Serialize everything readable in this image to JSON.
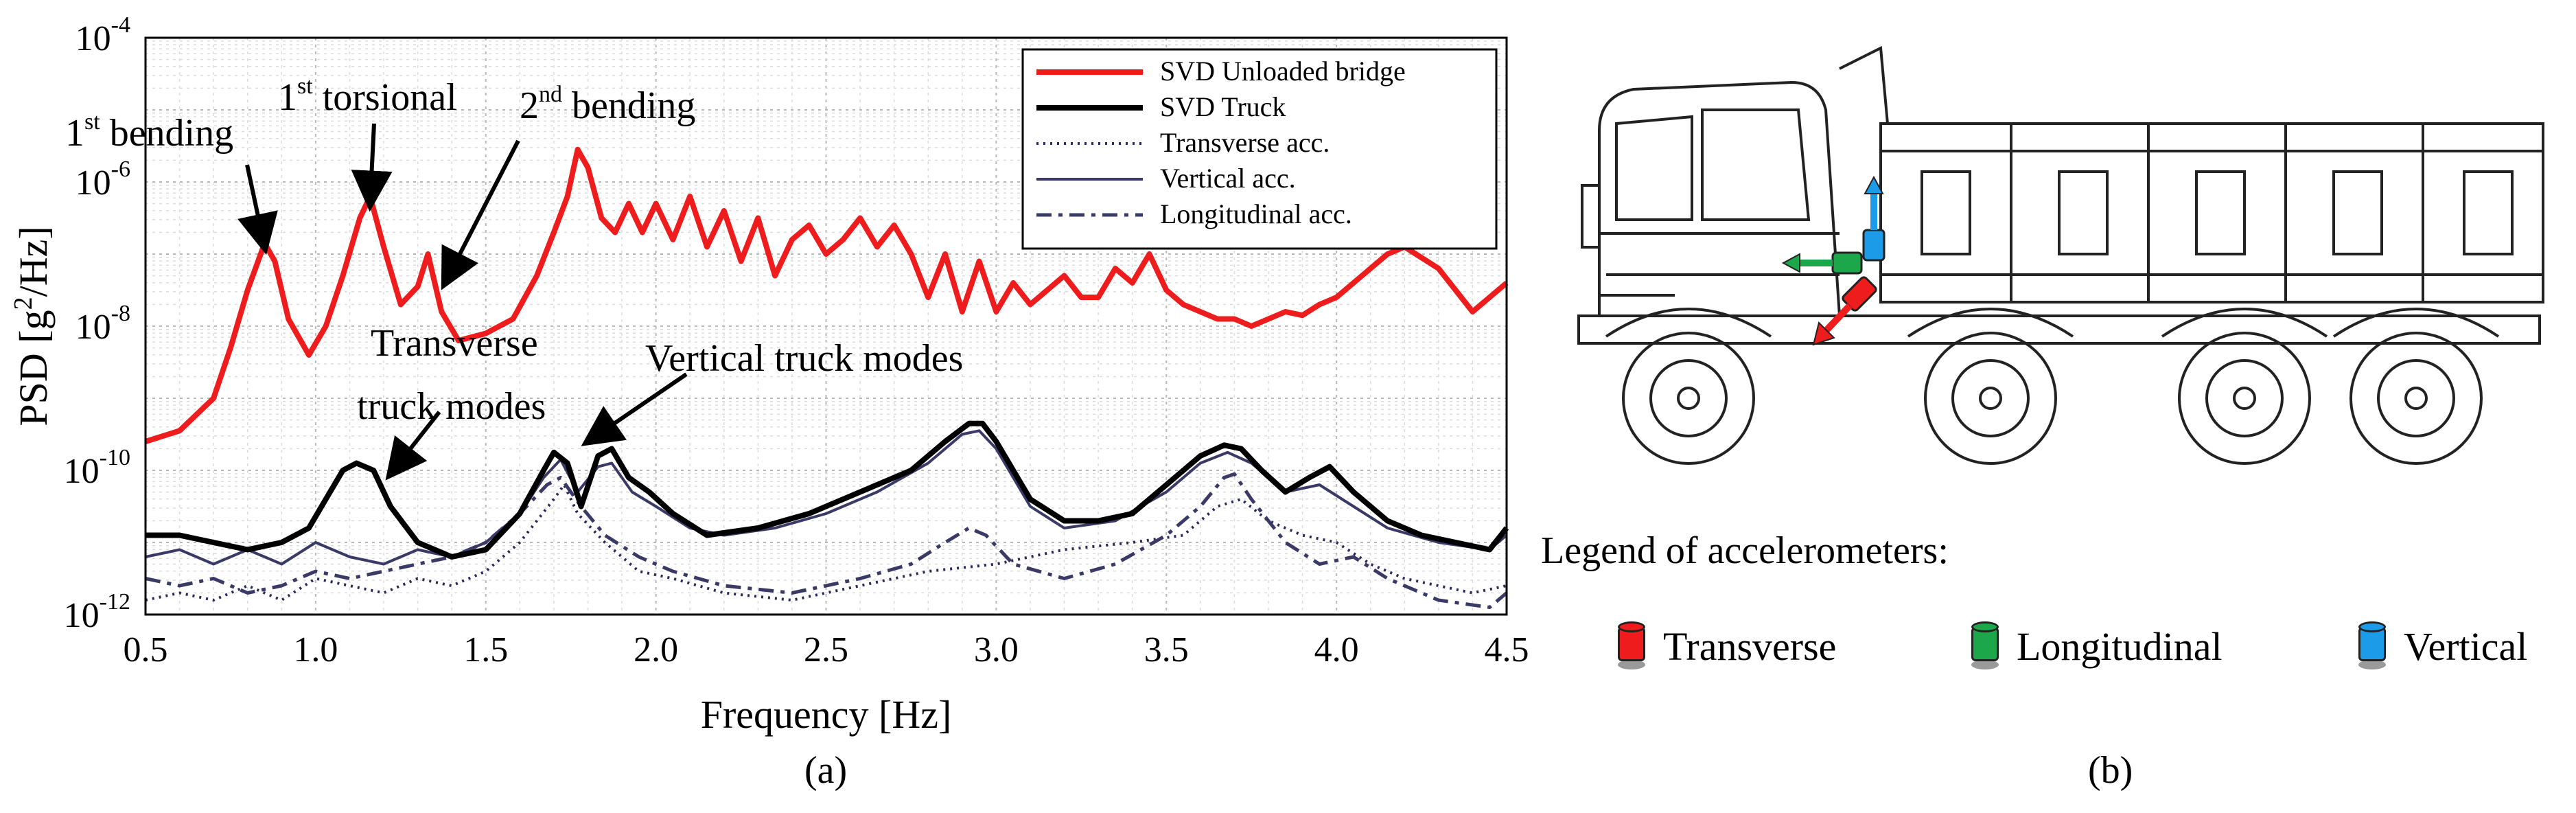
{
  "chart_data": {
    "type": "line",
    "yscale": "log",
    "xlabel": "Frequency [Hz]",
    "ylabel_parts": [
      "PSD [g",
      "2",
      "/Hz]"
    ],
    "xlim": [
      0.5,
      4.5
    ],
    "ylim_exponents": [
      -12,
      -4
    ],
    "xticks": [
      "0.5",
      "1.0",
      "1.5",
      "2.0",
      "2.5",
      "3.0",
      "3.5",
      "4.0",
      "4.5"
    ],
    "yticks": [
      {
        "base": "10",
        "exp": "-12"
      },
      {
        "base": "10",
        "exp": "-10"
      },
      {
        "base": "10",
        "exp": "-8"
      },
      {
        "base": "10",
        "exp": "-6"
      },
      {
        "base": "10",
        "exp": "-4"
      }
    ],
    "series": [
      {
        "name": "SVD Unloaded bridge",
        "color": "#ee1c1c",
        "style": "solid-thick",
        "points": [
          [
            0.5,
            -9.6
          ],
          [
            0.6,
            -9.45
          ],
          [
            0.7,
            -9.0
          ],
          [
            0.75,
            -8.3
          ],
          [
            0.8,
            -7.5
          ],
          [
            0.85,
            -6.85
          ],
          [
            0.88,
            -7.1
          ],
          [
            0.92,
            -7.9
          ],
          [
            0.98,
            -8.4
          ],
          [
            1.03,
            -8.0
          ],
          [
            1.08,
            -7.3
          ],
          [
            1.13,
            -6.5
          ],
          [
            1.16,
            -6.2
          ],
          [
            1.2,
            -6.9
          ],
          [
            1.25,
            -7.7
          ],
          [
            1.3,
            -7.45
          ],
          [
            1.33,
            -7.0
          ],
          [
            1.37,
            -7.8
          ],
          [
            1.42,
            -8.2
          ],
          [
            1.5,
            -8.1
          ],
          [
            1.58,
            -7.9
          ],
          [
            1.65,
            -7.3
          ],
          [
            1.7,
            -6.7
          ],
          [
            1.74,
            -6.2
          ],
          [
            1.77,
            -5.55
          ],
          [
            1.8,
            -5.8
          ],
          [
            1.84,
            -6.5
          ],
          [
            1.88,
            -6.7
          ],
          [
            1.92,
            -6.3
          ],
          [
            1.96,
            -6.7
          ],
          [
            2.0,
            -6.3
          ],
          [
            2.05,
            -6.8
          ],
          [
            2.1,
            -6.2
          ],
          [
            2.15,
            -6.9
          ],
          [
            2.2,
            -6.4
          ],
          [
            2.25,
            -7.1
          ],
          [
            2.3,
            -6.5
          ],
          [
            2.35,
            -7.3
          ],
          [
            2.4,
            -6.8
          ],
          [
            2.45,
            -6.6
          ],
          [
            2.5,
            -7.0
          ],
          [
            2.55,
            -6.8
          ],
          [
            2.6,
            -6.5
          ],
          [
            2.65,
            -6.9
          ],
          [
            2.7,
            -6.6
          ],
          [
            2.75,
            -7.0
          ],
          [
            2.8,
            -7.6
          ],
          [
            2.85,
            -7.0
          ],
          [
            2.9,
            -7.8
          ],
          [
            2.95,
            -7.1
          ],
          [
            3.0,
            -7.8
          ],
          [
            3.05,
            -7.4
          ],
          [
            3.1,
            -7.7
          ],
          [
            3.15,
            -7.5
          ],
          [
            3.2,
            -7.3
          ],
          [
            3.25,
            -7.6
          ],
          [
            3.3,
            -7.6
          ],
          [
            3.35,
            -7.2
          ],
          [
            3.4,
            -7.4
          ],
          [
            3.45,
            -7.0
          ],
          [
            3.5,
            -7.5
          ],
          [
            3.55,
            -7.7
          ],
          [
            3.6,
            -7.8
          ],
          [
            3.65,
            -7.9
          ],
          [
            3.7,
            -7.9
          ],
          [
            3.75,
            -8.0
          ],
          [
            3.8,
            -7.9
          ],
          [
            3.85,
            -7.8
          ],
          [
            3.9,
            -7.85
          ],
          [
            3.95,
            -7.7
          ],
          [
            4.0,
            -7.6
          ],
          [
            4.05,
            -7.4
          ],
          [
            4.1,
            -7.2
          ],
          [
            4.15,
            -7.0
          ],
          [
            4.2,
            -6.9
          ],
          [
            4.3,
            -7.2
          ],
          [
            4.35,
            -7.5
          ],
          [
            4.4,
            -7.8
          ],
          [
            4.45,
            -7.6
          ],
          [
            4.5,
            -7.4
          ]
        ]
      },
      {
        "name": "SVD Truck",
        "color": "#000000",
        "style": "solid-thick",
        "points": [
          [
            0.5,
            -10.9
          ],
          [
            0.6,
            -10.9
          ],
          [
            0.7,
            -11.0
          ],
          [
            0.8,
            -11.1
          ],
          [
            0.9,
            -11.0
          ],
          [
            0.98,
            -10.8
          ],
          [
            1.03,
            -10.4
          ],
          [
            1.08,
            -10.0
          ],
          [
            1.12,
            -9.9
          ],
          [
            1.17,
            -10.0
          ],
          [
            1.22,
            -10.5
          ],
          [
            1.3,
            -11.0
          ],
          [
            1.4,
            -11.2
          ],
          [
            1.5,
            -11.1
          ],
          [
            1.6,
            -10.6
          ],
          [
            1.67,
            -10.0
          ],
          [
            1.7,
            -9.75
          ],
          [
            1.74,
            -9.9
          ],
          [
            1.78,
            -10.5
          ],
          [
            1.83,
            -9.8
          ],
          [
            1.87,
            -9.7
          ],
          [
            1.92,
            -10.1
          ],
          [
            1.98,
            -10.3
          ],
          [
            2.05,
            -10.6
          ],
          [
            2.15,
            -10.9
          ],
          [
            2.3,
            -10.8
          ],
          [
            2.45,
            -10.6
          ],
          [
            2.6,
            -10.3
          ],
          [
            2.75,
            -10.0
          ],
          [
            2.85,
            -9.6
          ],
          [
            2.92,
            -9.35
          ],
          [
            2.96,
            -9.35
          ],
          [
            3.0,
            -9.6
          ],
          [
            3.1,
            -10.4
          ],
          [
            3.2,
            -10.7
          ],
          [
            3.3,
            -10.7
          ],
          [
            3.4,
            -10.6
          ],
          [
            3.5,
            -10.2
          ],
          [
            3.6,
            -9.8
          ],
          [
            3.67,
            -9.65
          ],
          [
            3.72,
            -9.7
          ],
          [
            3.78,
            -10.0
          ],
          [
            3.85,
            -10.3
          ],
          [
            3.92,
            -10.1
          ],
          [
            3.98,
            -9.95
          ],
          [
            4.05,
            -10.3
          ],
          [
            4.15,
            -10.7
          ],
          [
            4.25,
            -10.9
          ],
          [
            4.35,
            -11.0
          ],
          [
            4.45,
            -11.1
          ],
          [
            4.5,
            -10.8
          ]
        ]
      },
      {
        "name": "Transverse acc.",
        "color": "#2a2a5a",
        "style": "dotted",
        "points": [
          [
            0.5,
            -11.8
          ],
          [
            0.6,
            -11.7
          ],
          [
            0.7,
            -11.8
          ],
          [
            0.8,
            -11.6
          ],
          [
            0.9,
            -11.8
          ],
          [
            1.0,
            -11.5
          ],
          [
            1.1,
            -11.6
          ],
          [
            1.2,
            -11.7
          ],
          [
            1.3,
            -11.5
          ],
          [
            1.4,
            -11.6
          ],
          [
            1.5,
            -11.4
          ],
          [
            1.6,
            -11.0
          ],
          [
            1.7,
            -10.4
          ],
          [
            1.73,
            -10.2
          ],
          [
            1.77,
            -10.6
          ],
          [
            1.85,
            -11.0
          ],
          [
            1.95,
            -11.4
          ],
          [
            2.05,
            -11.5
          ],
          [
            2.2,
            -11.7
          ],
          [
            2.4,
            -11.8
          ],
          [
            2.6,
            -11.6
          ],
          [
            2.8,
            -11.4
          ],
          [
            3.0,
            -11.3
          ],
          [
            3.2,
            -11.1
          ],
          [
            3.4,
            -11.0
          ],
          [
            3.55,
            -10.9
          ],
          [
            3.65,
            -10.5
          ],
          [
            3.72,
            -10.4
          ],
          [
            3.8,
            -10.7
          ],
          [
            3.9,
            -10.9
          ],
          [
            4.0,
            -11.0
          ],
          [
            4.1,
            -11.3
          ],
          [
            4.2,
            -11.5
          ],
          [
            4.3,
            -11.6
          ],
          [
            4.4,
            -11.7
          ],
          [
            4.5,
            -11.6
          ]
        ]
      },
      {
        "name": "Vertical acc.",
        "color": "#3a3a66",
        "style": "solid-thin",
        "points": [
          [
            0.5,
            -11.2
          ],
          [
            0.6,
            -11.1
          ],
          [
            0.7,
            -11.3
          ],
          [
            0.8,
            -11.1
          ],
          [
            0.9,
            -11.3
          ],
          [
            1.0,
            -11.0
          ],
          [
            1.1,
            -11.2
          ],
          [
            1.2,
            -11.3
          ],
          [
            1.3,
            -11.1
          ],
          [
            1.4,
            -11.2
          ],
          [
            1.5,
            -11.0
          ],
          [
            1.6,
            -10.6
          ],
          [
            1.67,
            -10.1
          ],
          [
            1.72,
            -9.85
          ],
          [
            1.77,
            -10.3
          ],
          [
            1.83,
            -9.95
          ],
          [
            1.87,
            -9.9
          ],
          [
            1.93,
            -10.3
          ],
          [
            2.0,
            -10.5
          ],
          [
            2.1,
            -10.8
          ],
          [
            2.2,
            -10.9
          ],
          [
            2.35,
            -10.8
          ],
          [
            2.5,
            -10.6
          ],
          [
            2.65,
            -10.3
          ],
          [
            2.8,
            -9.9
          ],
          [
            2.9,
            -9.5
          ],
          [
            2.95,
            -9.45
          ],
          [
            3.0,
            -9.7
          ],
          [
            3.1,
            -10.5
          ],
          [
            3.2,
            -10.8
          ],
          [
            3.35,
            -10.7
          ],
          [
            3.5,
            -10.3
          ],
          [
            3.6,
            -9.9
          ],
          [
            3.68,
            -9.75
          ],
          [
            3.75,
            -9.9
          ],
          [
            3.85,
            -10.3
          ],
          [
            3.95,
            -10.2
          ],
          [
            4.05,
            -10.5
          ],
          [
            4.15,
            -10.8
          ],
          [
            4.3,
            -11.0
          ],
          [
            4.45,
            -11.1
          ],
          [
            4.5,
            -10.9
          ]
        ]
      },
      {
        "name": "Longitudinal acc.",
        "color": "#3a3a66",
        "style": "dashed",
        "points": [
          [
            0.5,
            -11.5
          ],
          [
            0.6,
            -11.6
          ],
          [
            0.7,
            -11.5
          ],
          [
            0.8,
            -11.7
          ],
          [
            0.9,
            -11.6
          ],
          [
            1.0,
            -11.4
          ],
          [
            1.1,
            -11.5
          ],
          [
            1.2,
            -11.4
          ],
          [
            1.3,
            -11.3
          ],
          [
            1.4,
            -11.2
          ],
          [
            1.5,
            -11.0
          ],
          [
            1.6,
            -10.6
          ],
          [
            1.68,
            -10.2
          ],
          [
            1.72,
            -10.1
          ],
          [
            1.78,
            -10.5
          ],
          [
            1.85,
            -10.9
          ],
          [
            1.95,
            -11.2
          ],
          [
            2.05,
            -11.4
          ],
          [
            2.2,
            -11.6
          ],
          [
            2.4,
            -11.7
          ],
          [
            2.6,
            -11.5
          ],
          [
            2.75,
            -11.3
          ],
          [
            2.85,
            -11.0
          ],
          [
            2.92,
            -10.8
          ],
          [
            2.97,
            -10.9
          ],
          [
            3.05,
            -11.3
          ],
          [
            3.2,
            -11.5
          ],
          [
            3.35,
            -11.3
          ],
          [
            3.5,
            -10.9
          ],
          [
            3.6,
            -10.5
          ],
          [
            3.67,
            -10.1
          ],
          [
            3.7,
            -10.05
          ],
          [
            3.75,
            -10.4
          ],
          [
            3.85,
            -11.0
          ],
          [
            3.95,
            -11.3
          ],
          [
            4.05,
            -11.2
          ],
          [
            4.15,
            -11.5
          ],
          [
            4.3,
            -11.8
          ],
          [
            4.45,
            -11.9
          ],
          [
            4.5,
            -11.7
          ]
        ]
      }
    ],
    "annotations": [
      {
        "id": "ann-1st-bending",
        "sup": "st",
        "pre": "1",
        "post": " bending",
        "tip": [
          0.85,
          -6.9
        ]
      },
      {
        "id": "ann-1st-torsional",
        "sup": "st",
        "pre": "1",
        "post": " torsional",
        "tip": [
          1.16,
          -6.3
        ]
      },
      {
        "id": "ann-2nd-bending",
        "sup": "nd",
        "pre": "2",
        "post": " bending",
        "tip": [
          1.38,
          -7.4
        ]
      },
      {
        "id": "ann-transverse",
        "line1": "Transverse",
        "line2": "truck modes",
        "tip": [
          1.22,
          -10.05
        ]
      },
      {
        "id": "ann-vertical",
        "line1": "Vertical truck modes",
        "tip": [
          1.8,
          -9.6
        ]
      }
    ],
    "caption": "(a)"
  },
  "figure_b": {
    "caption": "(b)",
    "legend_title": "Legend of accelerometers:",
    "legend_items": [
      {
        "label": "Transverse",
        "color": "#ee1c1c"
      },
      {
        "label": "Longitudinal",
        "color": "#1ca84a"
      },
      {
        "label": "Vertical",
        "color": "#1c9be8"
      }
    ]
  }
}
